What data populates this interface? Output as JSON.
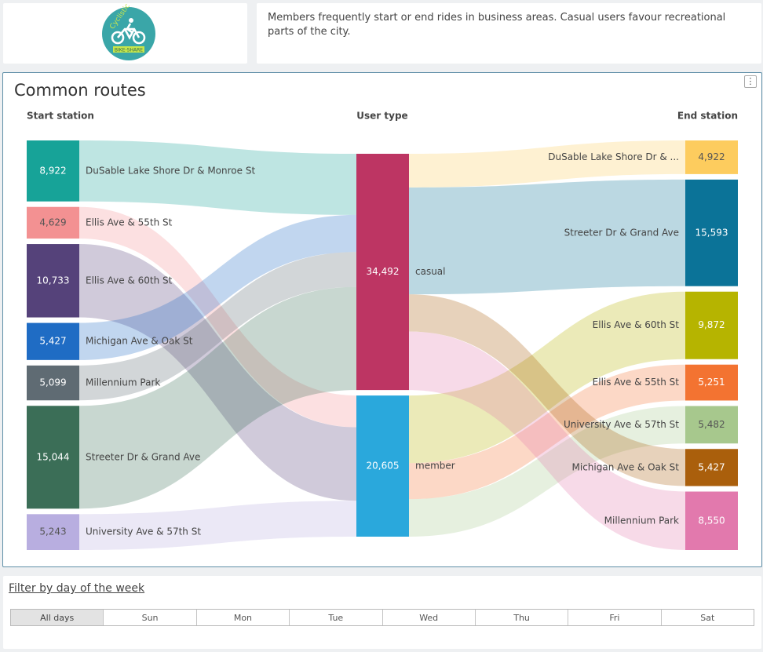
{
  "logo": {
    "ring_text": "Cyclistic",
    "banner_text": "BIKE-SHARE",
    "bg_color": "#3aa6a8",
    "icon": "bicycle-rider-icon"
  },
  "description": "Members frequently start or end rides in business areas. Casual users favour recreational parts of the city.",
  "sankey": {
    "title": "Common routes",
    "menu_glyph": "⋮",
    "headers": {
      "start": "Start station",
      "middle": "User type",
      "end": "End station"
    },
    "chart_data": {
      "type": "sankey",
      "start_nodes": [
        {
          "name": "DuSable Lake Shore Dr & Monroe St",
          "value": 8922,
          "label": "8,922",
          "color": "#17a398"
        },
        {
          "name": "Ellis Ave & 55th St",
          "value": 4629,
          "label": "4,629",
          "color": "#f39192"
        },
        {
          "name": "Ellis Ave & 60th St",
          "value": 10733,
          "label": "10,733",
          "color": "#55427a"
        },
        {
          "name": "Michigan Ave & Oak St",
          "value": 5427,
          "label": "5,427",
          "color": "#1f6cc4"
        },
        {
          "name": "Millennium Park",
          "value": 5099,
          "label": "5,099",
          "color": "#5f6b73"
        },
        {
          "name": "Streeter Dr & Grand Ave",
          "value": 15044,
          "label": "15,044",
          "color": "#3b6e57"
        },
        {
          "name": "University Ave & 57th St",
          "value": 5243,
          "label": "5,243",
          "color": "#b8aee0"
        }
      ],
      "middle_nodes": [
        {
          "name": "casual",
          "value": 34492,
          "label": "34,492",
          "color": "#bd3563"
        },
        {
          "name": "member",
          "value": 20605,
          "label": "20,605",
          "color": "#2aa8dc"
        }
      ],
      "end_nodes": [
        {
          "name": "DuSable Lake Shore Dr & ...",
          "value": 4922,
          "label": "4,922",
          "color": "#fdcc5e"
        },
        {
          "name": "Streeter Dr & Grand Ave",
          "value": 15593,
          "label": "15,593",
          "color": "#0b7398"
        },
        {
          "name": "Ellis Ave & 60th St",
          "value": 9872,
          "label": "9,872",
          "color": "#b6b400"
        },
        {
          "name": "Ellis Ave & 55th St",
          "value": 5251,
          "label": "5,251",
          "color": "#f37331"
        },
        {
          "name": "University Ave & 57th St",
          "value": 5482,
          "label": "5,482",
          "color": "#a7c88d"
        },
        {
          "name": "Michigan Ave & Oak St",
          "value": 5427,
          "label": "5,427",
          "color": "#aa5f0c"
        },
        {
          "name": "Millennium Park",
          "value": 8550,
          "label": "8,550",
          "color": "#e279ad"
        }
      ],
      "start_links": [
        {
          "from": 0,
          "to": 0,
          "value": 8922
        },
        {
          "from": 1,
          "to": 1,
          "value": 4629
        },
        {
          "from": 2,
          "to": 1,
          "value": 10733
        },
        {
          "from": 3,
          "to": 0,
          "value": 5427
        },
        {
          "from": 4,
          "to": 0,
          "value": 5099
        },
        {
          "from": 5,
          "to": 0,
          "value": 15044
        },
        {
          "from": 6,
          "to": 1,
          "value": 5243
        }
      ],
      "end_links": [
        {
          "from": 0,
          "to": 0,
          "value": 4922
        },
        {
          "from": 0,
          "to": 1,
          "value": 15593
        },
        {
          "from": 1,
          "to": 2,
          "value": 9872
        },
        {
          "from": 1,
          "to": 3,
          "value": 5251
        },
        {
          "from": 1,
          "to": 4,
          "value": 5482
        },
        {
          "from": 0,
          "to": 5,
          "value": 5427
        },
        {
          "from": 0,
          "to": 6,
          "value": 8550
        }
      ]
    }
  },
  "filter": {
    "title": "Filter by day of the week",
    "days": [
      "All days",
      "Sun",
      "Mon",
      "Tue",
      "Wed",
      "Thu",
      "Fri",
      "Sat"
    ],
    "selected": "All days"
  }
}
